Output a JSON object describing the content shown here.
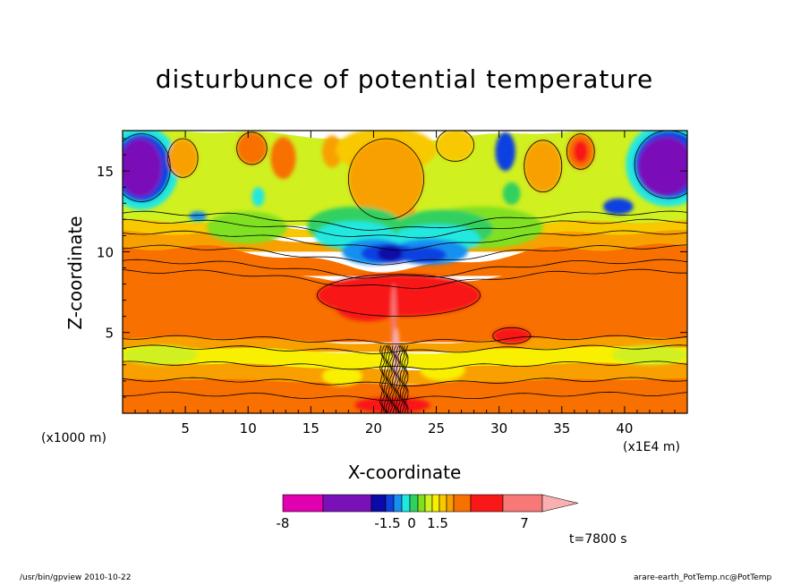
{
  "chart_data": {
    "type": "heatmap",
    "title": "disturbunce of potential temperature",
    "xlabel": "X-coordinate",
    "ylabel": "Z-coordinate",
    "x_unit_left": "(x1000 m)",
    "x_unit_right": "(x1E4 m)",
    "xlim": [
      0,
      45
    ],
    "ylim": [
      0,
      17.5
    ],
    "x_ticks": [
      5,
      10,
      15,
      20,
      25,
      30,
      35,
      40
    ],
    "y_ticks": [
      5,
      10,
      15
    ],
    "colorbar": {
      "colors": [
        "#e000b0",
        "#7a10b8",
        "#0a0aa8",
        "#1040e0",
        "#1890f0",
        "#20e8e0",
        "#30d060",
        "#80e020",
        "#d0f020",
        "#f8f000",
        "#f8c800",
        "#f8a000",
        "#f87000",
        "#f81818",
        "#f87878",
        "#f8b0b0"
      ],
      "tick_labels": [
        "-8",
        "-1.5",
        "0",
        "1.5",
        "7"
      ],
      "tick_values": [
        -8,
        -1.5,
        0,
        1.5,
        7
      ]
    },
    "annotation": "t=7800 s"
  },
  "footer": {
    "left": "/usr/bin/gpview   2010-10-22",
    "right": "arare-earth_PotTemp.nc@PotTemp"
  }
}
